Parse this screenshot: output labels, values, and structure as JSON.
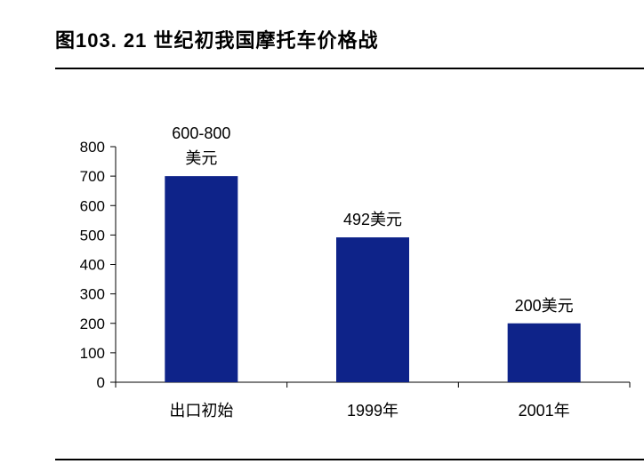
{
  "title": "图103. 21 世纪初我国摩托车价格战",
  "chart_data": {
    "type": "bar",
    "title": "图103. 21 世纪初我国摩托车价格战",
    "xlabel": "",
    "ylabel": "",
    "ylim": [
      0,
      800
    ],
    "yticks": [
      0,
      100,
      200,
      300,
      400,
      500,
      600,
      700,
      800
    ],
    "categories": [
      "出口初始",
      "1999年",
      "2001年"
    ],
    "values": [
      700,
      492,
      200
    ],
    "data_labels": [
      [
        "600-800",
        "美元"
      ],
      [
        "492美元"
      ],
      [
        "200美元"
      ]
    ],
    "bar_color": "#0E2389",
    "grid": false,
    "legend": "none"
  }
}
